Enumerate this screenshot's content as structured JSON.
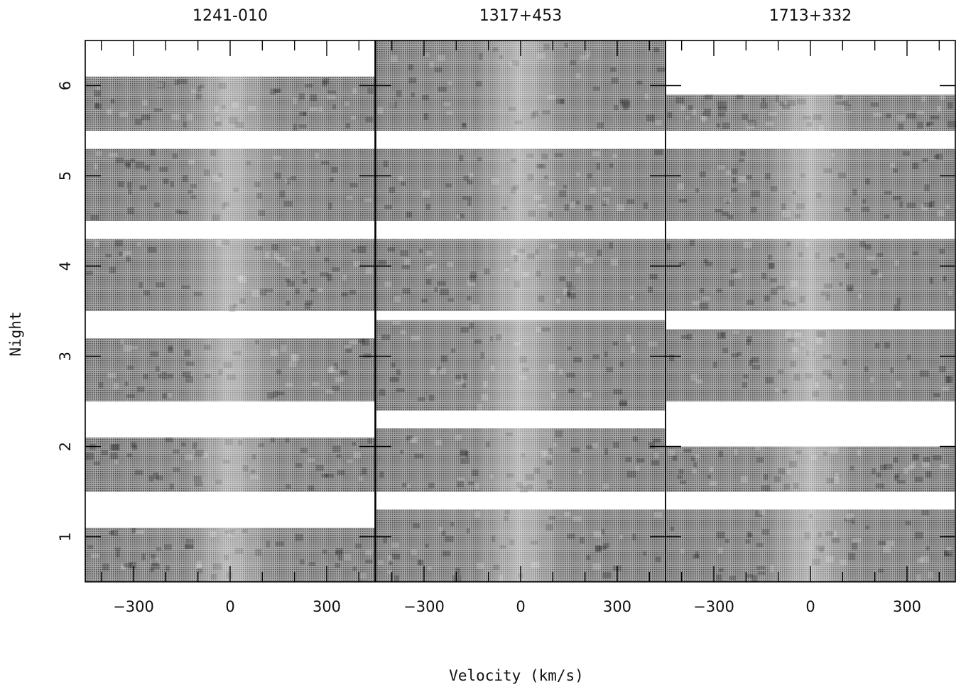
{
  "chart_data": {
    "type": "heatmap",
    "xlabel": "Velocity (km/s)",
    "ylabel": "Night",
    "xlim": [
      -450,
      450
    ],
    "ylim": [
      0.5,
      6.5
    ],
    "x_ticks": [
      -300,
      0,
      300
    ],
    "y_ticks": [
      1,
      2,
      3,
      4,
      5,
      6
    ],
    "panels": [
      {
        "title": "1241-010",
        "strips": [
          {
            "night": 1,
            "y_range": [
              0.5,
              1.1
            ]
          },
          {
            "night": 2,
            "y_range": [
              1.5,
              2.1
            ]
          },
          {
            "night": 3,
            "y_range": [
              2.5,
              3.2
            ]
          },
          {
            "night": 4,
            "y_range": [
              3.5,
              4.3
            ]
          },
          {
            "night": 5,
            "y_range": [
              4.5,
              5.3
            ]
          },
          {
            "night": 6,
            "y_range": [
              5.5,
              6.1
            ]
          }
        ]
      },
      {
        "title": "1317+453",
        "strips": [
          {
            "night": 1,
            "y_range": [
              0.5,
              1.3
            ]
          },
          {
            "night": 2,
            "y_range": [
              1.5,
              2.2
            ]
          },
          {
            "night": 3,
            "y_range": [
              2.4,
              3.4
            ]
          },
          {
            "night": 4,
            "y_range": [
              3.5,
              4.3
            ]
          },
          {
            "night": 5,
            "y_range": [
              4.5,
              5.3
            ]
          },
          {
            "night": 6,
            "y_range": [
              5.5,
              6.5
            ]
          }
        ]
      },
      {
        "title": "1713+332",
        "strips": [
          {
            "night": 1,
            "y_range": [
              0.5,
              1.3
            ]
          },
          {
            "night": 2,
            "y_range": [
              1.5,
              2.0
            ]
          },
          {
            "night": 3,
            "y_range": [
              2.5,
              3.3
            ]
          },
          {
            "night": 4,
            "y_range": [
              3.5,
              4.3
            ]
          },
          {
            "night": 5,
            "y_range": [
              4.5,
              5.3
            ]
          },
          {
            "night": 6,
            "y_range": [
              5.5,
              5.9
            ]
          }
        ]
      }
    ]
  }
}
